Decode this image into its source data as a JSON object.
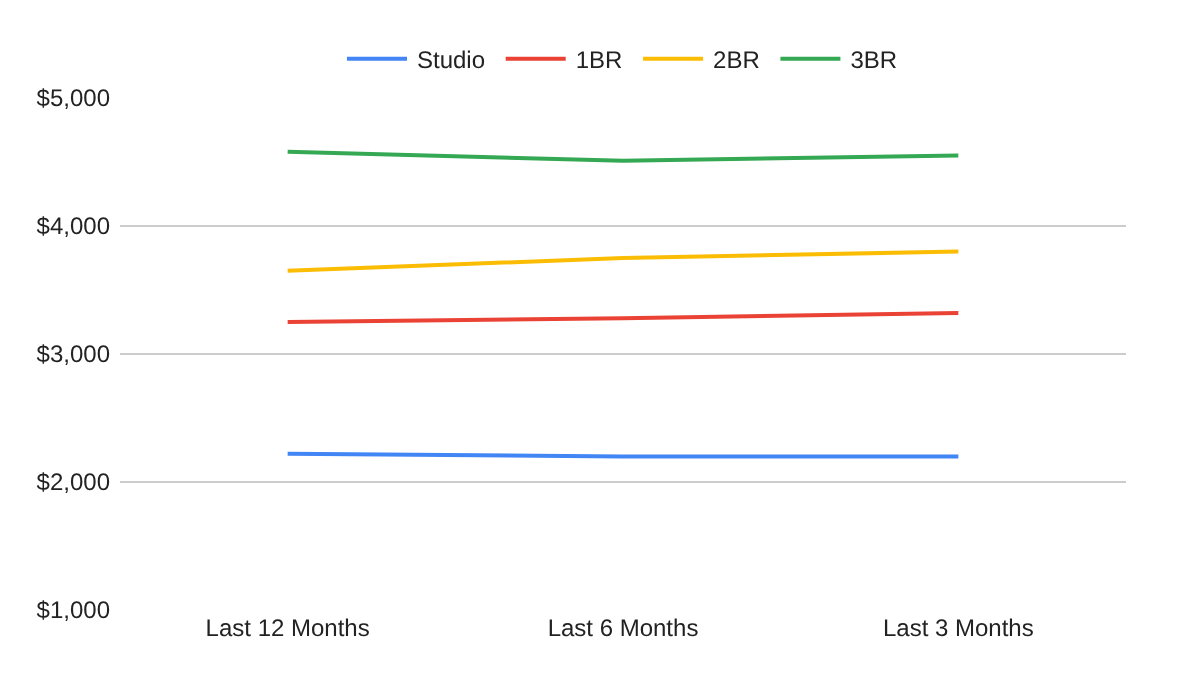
{
  "chart_data": {
    "type": "line",
    "categories": [
      "Last 12 Months",
      "Last 6 Months",
      "Last 3 Months"
    ],
    "series": [
      {
        "name": "Studio",
        "color": "#4285f4",
        "values": [
          2220,
          2200,
          2200
        ]
      },
      {
        "name": "1BR",
        "color": "#ea4335",
        "values": [
          3250,
          3280,
          3320
        ]
      },
      {
        "name": "2BR",
        "color": "#fbbc04",
        "values": [
          3650,
          3750,
          3800
        ]
      },
      {
        "name": "3BR",
        "color": "#34a853",
        "values": [
          4580,
          4510,
          4550
        ]
      }
    ],
    "ylim": [
      1000,
      5000
    ],
    "yticks": [
      {
        "value": 1000,
        "label": "$1,000"
      },
      {
        "value": 2000,
        "label": "$2,000"
      },
      {
        "value": 3000,
        "label": "$3,000"
      },
      {
        "value": 4000,
        "label": "$4,000"
      },
      {
        "value": 5000,
        "label": "$5,000"
      }
    ],
    "grid": "y",
    "legend": "top",
    "marker": "none",
    "line_style": "solid"
  }
}
